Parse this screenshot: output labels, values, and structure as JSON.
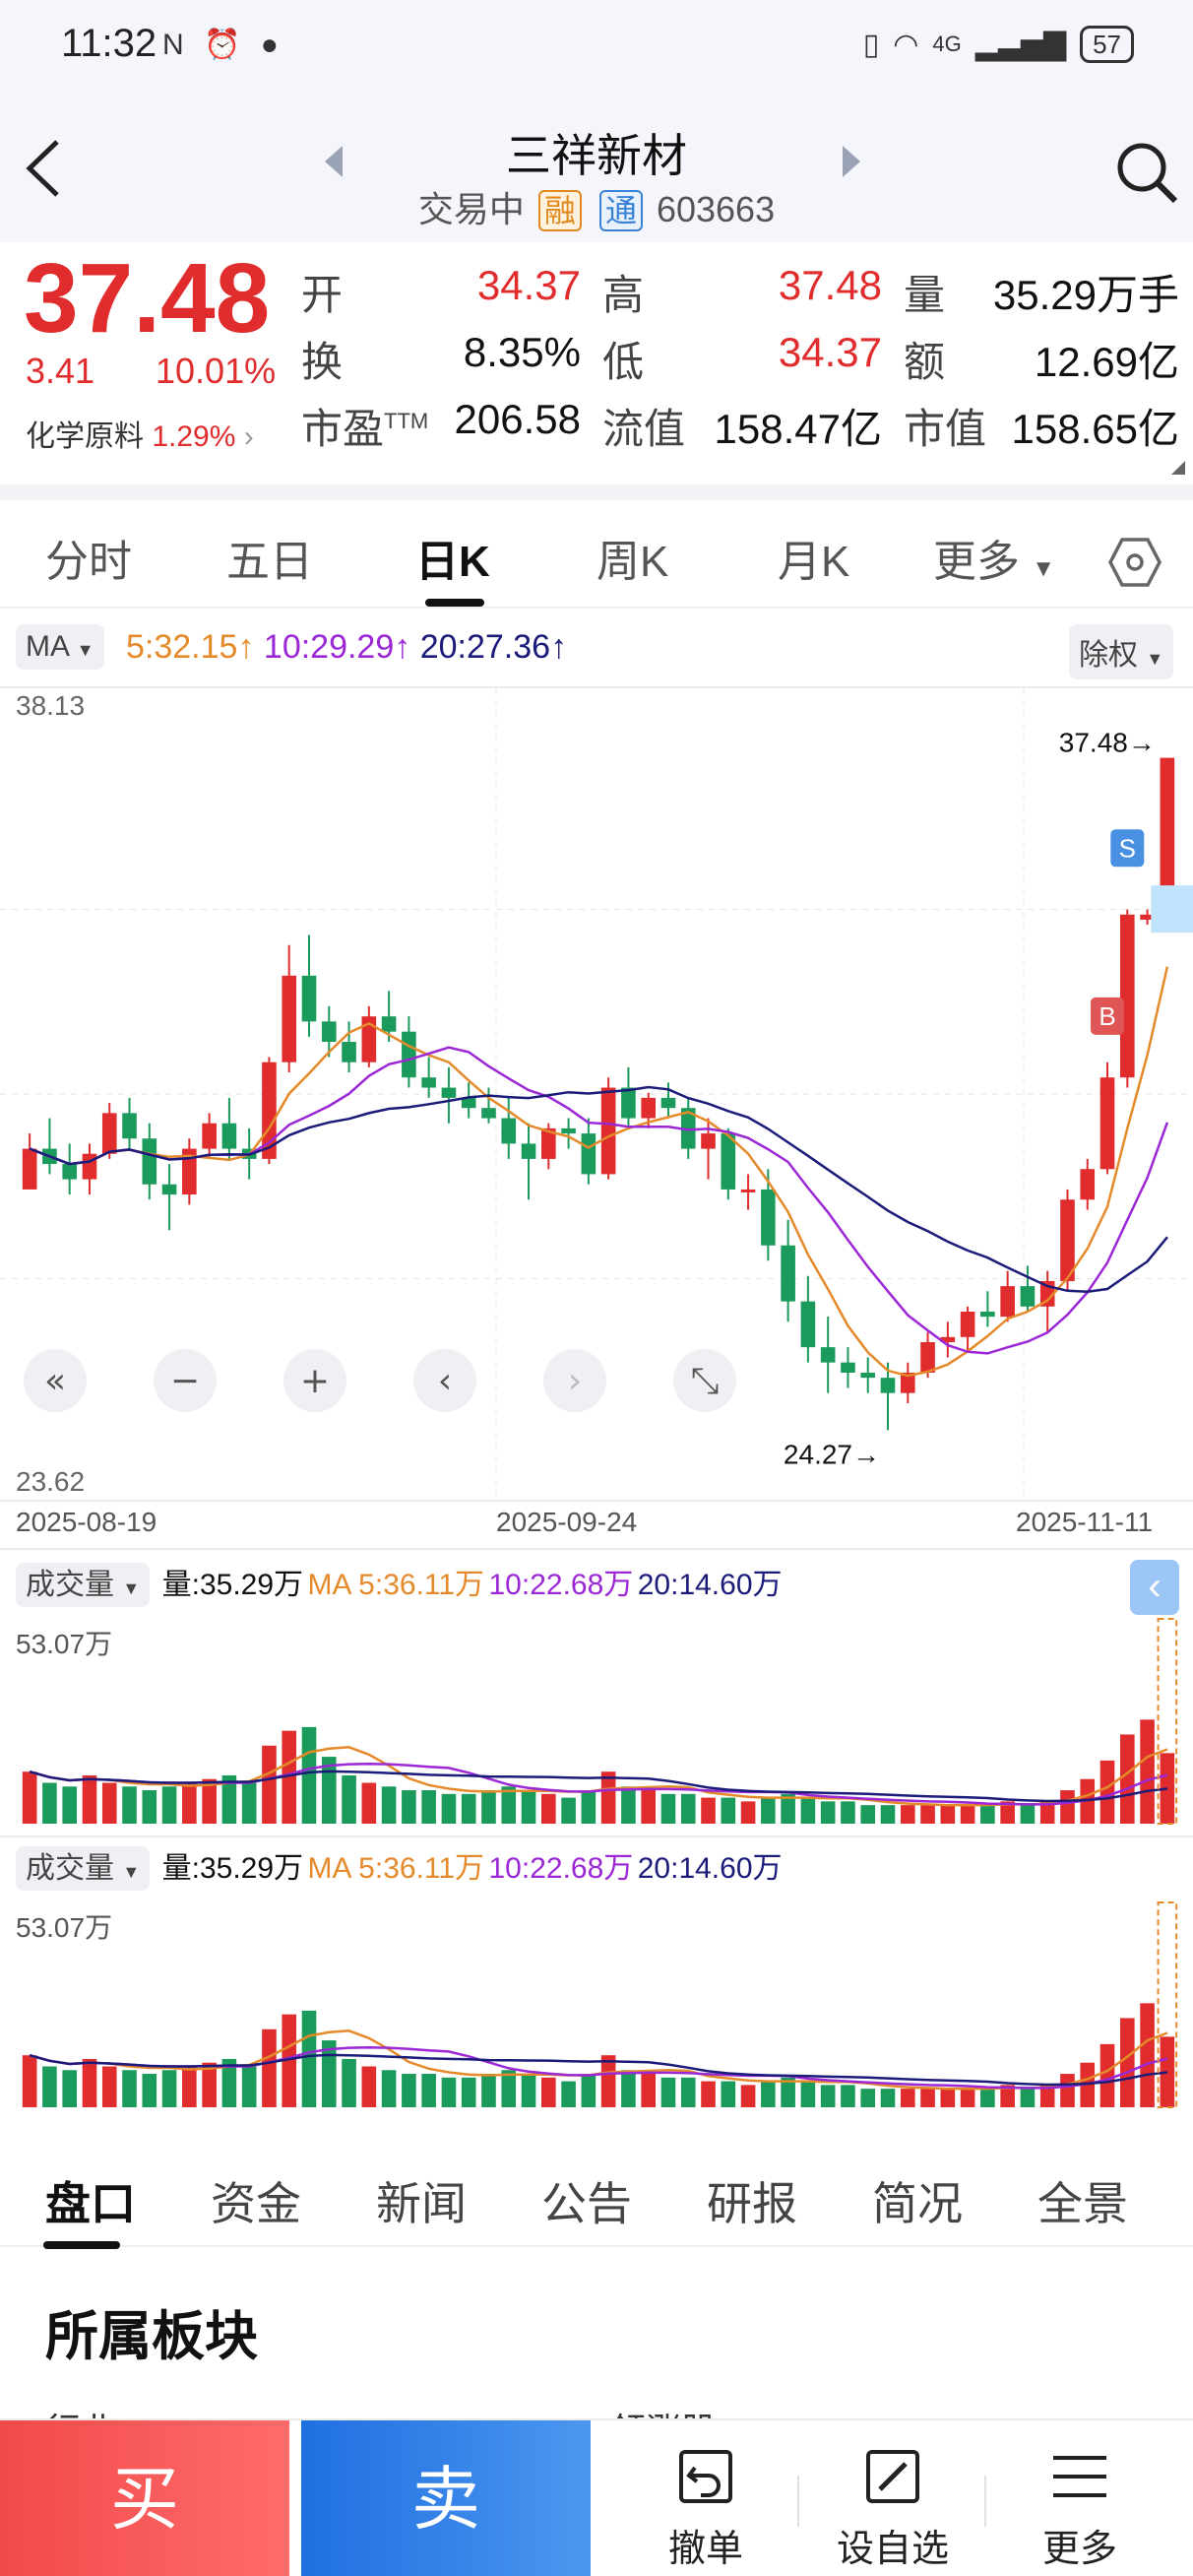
{
  "status_bar": {
    "time": "11:32",
    "left_icons": "N ⏰ ●",
    "network": "4G",
    "battery": "57"
  },
  "header": {
    "name": "三祥新材",
    "trading_status": "交易中",
    "tag_rong": "融",
    "tag_tong": "通",
    "code": "603663"
  },
  "quote": {
    "price": "37.48",
    "change": "3.41",
    "change_pct": "10.01%",
    "sector_name": "化学原料",
    "sector_pct": "1.29%",
    "fields": [
      {
        "label": "开",
        "value": "34.37",
        "color": "#e02c2c"
      },
      {
        "label": "高",
        "value": "37.48",
        "color": "#e02c2c"
      },
      {
        "label": "量",
        "value": "35.29万手",
        "color": "#111111"
      },
      {
        "label": "换",
        "value": "8.35%",
        "color": "#111111"
      },
      {
        "label": "低",
        "value": "34.37",
        "color": "#e02c2c"
      },
      {
        "label": "额",
        "value": "12.69亿",
        "color": "#111111"
      },
      {
        "label": "市盈TTM",
        "value": "206.58",
        "color": "#111111"
      },
      {
        "label": "流值",
        "value": "158.47亿",
        "color": "#111111"
      },
      {
        "label": "市值",
        "value": "158.65亿",
        "color": "#111111"
      }
    ]
  },
  "tabs": [
    "分时",
    "五日",
    "日K",
    "周K",
    "月K",
    "更多"
  ],
  "active_tab": "日K",
  "ma_bar": {
    "selector": "MA",
    "ma5": "5:32.15↑",
    "ma10": "10:29.29↑",
    "ma20": "20:27.36↑",
    "adjust": "除权"
  },
  "chart_data": {
    "type": "candlestick",
    "y_max_label": "38.13",
    "y_min_label": "23.62",
    "high_label": "37.48→",
    "low_label": "24.27→",
    "dates": [
      "2025-08-19",
      "2025-09-24",
      "2025-11-11"
    ],
    "ylim": [
      23.62,
      38.13
    ],
    "markers": [
      {
        "label": "S"
      },
      {
        "label": "B"
      }
    ],
    "colors": {
      "up": "#e02c2c",
      "down": "#1a9a5b",
      "ma5": "#e58a2a",
      "ma10": "#9b27d6",
      "ma20": "#1b1b7a"
    },
    "candles": [
      [
        29.0,
        30.1,
        29.1,
        29.8
      ],
      [
        29.8,
        30.4,
        29.3,
        29.5
      ],
      [
        29.5,
        29.9,
        28.9,
        29.2
      ],
      [
        29.2,
        29.9,
        28.9,
        29.7
      ],
      [
        29.7,
        30.7,
        29.6,
        30.5
      ],
      [
        30.5,
        30.8,
        29.8,
        30.0
      ],
      [
        30.0,
        30.3,
        28.8,
        29.1
      ],
      [
        29.1,
        29.5,
        28.2,
        28.9
      ],
      [
        28.9,
        30.0,
        28.7,
        29.8
      ],
      [
        29.8,
        30.5,
        29.6,
        30.3
      ],
      [
        30.3,
        30.8,
        29.6,
        29.8
      ],
      [
        29.8,
        30.2,
        29.2,
        29.6
      ],
      [
        29.6,
        31.6,
        29.5,
        31.5
      ],
      [
        31.5,
        33.8,
        31.3,
        33.2
      ],
      [
        33.2,
        34.0,
        32.0,
        32.3
      ],
      [
        32.3,
        32.6,
        31.6,
        31.9
      ],
      [
        31.9,
        32.3,
        31.3,
        31.5
      ],
      [
        31.5,
        32.6,
        31.4,
        32.4
      ],
      [
        32.4,
        32.9,
        31.9,
        32.1
      ],
      [
        32.1,
        32.4,
        31.0,
        31.2
      ],
      [
        31.2,
        31.6,
        30.8,
        31.0
      ],
      [
        31.0,
        31.4,
        30.3,
        30.8
      ],
      [
        30.8,
        31.1,
        30.4,
        30.6
      ],
      [
        30.6,
        31.0,
        30.3,
        30.4
      ],
      [
        30.4,
        30.8,
        29.6,
        29.9
      ],
      [
        29.9,
        30.3,
        28.8,
        29.6
      ],
      [
        29.6,
        30.3,
        29.4,
        30.2
      ],
      [
        30.2,
        30.4,
        29.8,
        30.1
      ],
      [
        30.1,
        30.4,
        29.1,
        29.3
      ],
      [
        29.3,
        31.2,
        29.2,
        31.0
      ],
      [
        31.0,
        31.4,
        30.2,
        30.4
      ],
      [
        30.4,
        30.9,
        30.2,
        30.8
      ],
      [
        30.8,
        31.1,
        30.4,
        30.6
      ],
      [
        30.6,
        30.8,
        29.6,
        29.8
      ],
      [
        29.8,
        30.4,
        29.2,
        30.1
      ],
      [
        30.1,
        30.2,
        28.8,
        29.0
      ],
      [
        29.0,
        29.3,
        28.6,
        29.0
      ],
      [
        29.0,
        29.4,
        27.6,
        27.9
      ],
      [
        27.9,
        28.4,
        26.4,
        26.8
      ],
      [
        26.8,
        27.3,
        25.6,
        25.9
      ],
      [
        25.9,
        26.5,
        25.0,
        25.6
      ],
      [
        25.6,
        25.9,
        25.1,
        25.4
      ],
      [
        25.4,
        25.7,
        25.0,
        25.3
      ],
      [
        25.3,
        25.6,
        24.27,
        25.0
      ],
      [
        25.0,
        25.6,
        24.8,
        25.4
      ],
      [
        25.4,
        26.2,
        25.3,
        26.0
      ],
      [
        26.0,
        26.4,
        25.7,
        26.1
      ],
      [
        26.1,
        26.7,
        25.8,
        26.6
      ],
      [
        26.6,
        27.0,
        26.3,
        26.5
      ],
      [
        26.5,
        27.4,
        26.4,
        27.1
      ],
      [
        27.1,
        27.5,
        26.6,
        26.7
      ],
      [
        26.7,
        27.4,
        26.2,
        27.2
      ],
      [
        27.2,
        29.0,
        27.0,
        28.8
      ],
      [
        28.8,
        29.6,
        28.6,
        29.4
      ],
      [
        29.4,
        31.5,
        29.3,
        31.2
      ],
      [
        31.2,
        34.5,
        31.0,
        34.4
      ],
      [
        34.3,
        34.5,
        34.2,
        34.4
      ],
      [
        34.37,
        37.48,
        34.37,
        37.48
      ]
    ]
  },
  "chart_controls": [
    "«",
    "−",
    "+",
    "‹",
    "›",
    "⤡"
  ],
  "volume_panels": [
    {
      "selector": "成交量",
      "vol": "量:35.29万",
      "ma5": "MA 5:36.11万",
      "ma10": "10:22.68万",
      "ma20": "20:14.60万",
      "max_label": "53.07万"
    },
    {
      "selector": "成交量",
      "vol": "量:35.29万",
      "ma5": "MA 5:36.11万",
      "ma10": "10:22.68万",
      "ma20": "20:14.60万",
      "max_label": "53.07万"
    }
  ],
  "volume_data": [
    14,
    11,
    10,
    13,
    11,
    10,
    9,
    10,
    11,
    12,
    13,
    11,
    21,
    25,
    26,
    18,
    13,
    11,
    10,
    9,
    9,
    8,
    8,
    9,
    10,
    9,
    8,
    7,
    9,
    14,
    10,
    9,
    8,
    8,
    7,
    7,
    6,
    7,
    8,
    7,
    6,
    6,
    5,
    5,
    5,
    5,
    5,
    5,
    5,
    6,
    5,
    6,
    9,
    12,
    17,
    24,
    28,
    19
  ],
  "bottom_tabs": [
    "盘口",
    "资金",
    "新闻",
    "公告",
    "研报",
    "简况",
    "全景"
  ],
  "section_title": "所属板块",
  "section_cut_left": "行业",
  "section_cut_right": "领涨股",
  "actions": {
    "buy": "买",
    "sell": "卖",
    "cancel": "撤单",
    "watch": "设自选",
    "more": "更多"
  }
}
